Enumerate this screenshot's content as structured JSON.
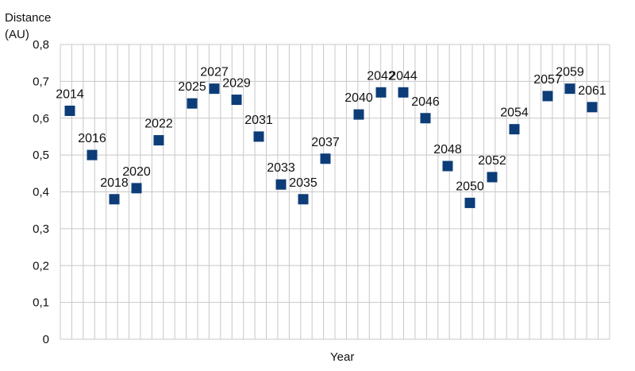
{
  "chart_data": {
    "type": "scatter",
    "title": "",
    "xlabel": "Year",
    "ylabel_lines": [
      "Distance",
      "(AU)"
    ],
    "ylim": [
      0,
      0.8
    ],
    "yticks": [
      "0",
      "0,1",
      "0,2",
      "0,3",
      "0,4",
      "0,5",
      "0,6",
      "0,7",
      "0,8"
    ],
    "grid": true,
    "marker_color": "#0d3d78",
    "grid_color": "#c8c8c8",
    "points": [
      {
        "label": "2014",
        "x": 2014,
        "y": 0.62
      },
      {
        "label": "2016",
        "x": 2016,
        "y": 0.5
      },
      {
        "label": "2018",
        "x": 2018,
        "y": 0.38
      },
      {
        "label": "2020",
        "x": 2020,
        "y": 0.41
      },
      {
        "label": "2022",
        "x": 2022,
        "y": 0.54
      },
      {
        "label": "2025",
        "x": 2025,
        "y": 0.64
      },
      {
        "label": "2027",
        "x": 2027,
        "y": 0.68
      },
      {
        "label": "2029",
        "x": 2029,
        "y": 0.65
      },
      {
        "label": "2031",
        "x": 2031,
        "y": 0.55
      },
      {
        "label": "2033",
        "x": 2033,
        "y": 0.42
      },
      {
        "label": "2035",
        "x": 2035,
        "y": 0.38
      },
      {
        "label": "2037",
        "x": 2037,
        "y": 0.49
      },
      {
        "label": "2040",
        "x": 2040,
        "y": 0.61
      },
      {
        "label": "2042",
        "x": 2042,
        "y": 0.67
      },
      {
        "label": "2044",
        "x": 2044,
        "y": 0.67
      },
      {
        "label": "2046",
        "x": 2046,
        "y": 0.6
      },
      {
        "label": "2048",
        "x": 2048,
        "y": 0.47
      },
      {
        "label": "2050",
        "x": 2050,
        "y": 0.37
      },
      {
        "label": "2052",
        "x": 2052,
        "y": 0.44
      },
      {
        "label": "2054",
        "x": 2054,
        "y": 0.57
      },
      {
        "label": "2057",
        "x": 2057,
        "y": 0.66
      },
      {
        "label": "2059",
        "x": 2059,
        "y": 0.68
      },
      {
        "label": "2061",
        "x": 2061,
        "y": 0.63
      }
    ]
  }
}
